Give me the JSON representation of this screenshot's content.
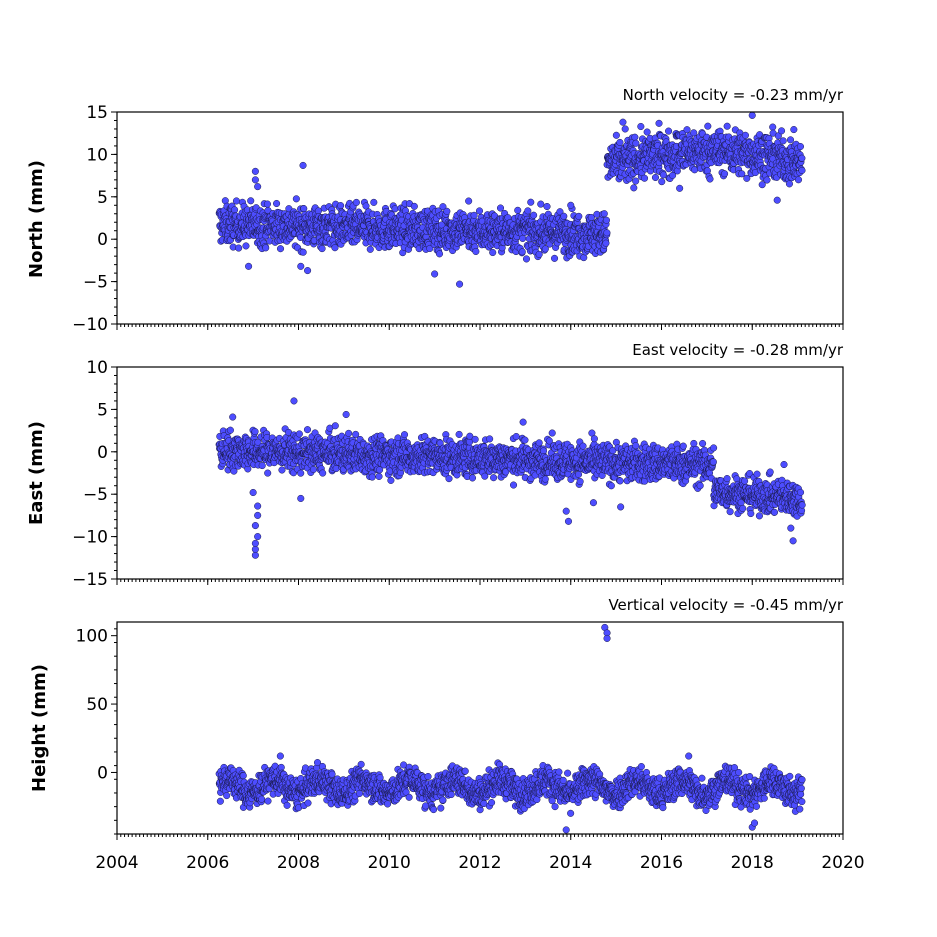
{
  "chart_data": [
    {
      "type": "scatter",
      "annotation": "North velocity = -0.23 mm/yr",
      "ylabel": "North (mm)",
      "xlim": [
        2004,
        2020
      ],
      "ylim": [
        -10,
        15
      ],
      "yticks": [
        -10,
        -5,
        0,
        5,
        10,
        15
      ],
      "marker_color": "#4d4dff",
      "segments": [
        {
          "start": 2006.25,
          "end": 2014.8,
          "y_start": 1.8,
          "y_end": 0.6,
          "spread": 1.2
        },
        {
          "start": 2014.8,
          "end": 2019.1,
          "y_start": 8.8,
          "y_end": 9.0,
          "spread": 1.3,
          "hump": 1.5
        }
      ],
      "outliers": [
        [
          2007.05,
          8.0
        ],
        [
          2007.05,
          7.0
        ],
        [
          2007.1,
          6.2
        ],
        [
          2008.1,
          8.7
        ],
        [
          2008.05,
          -3.2
        ],
        [
          2008.2,
          -3.7
        ],
        [
          2011.55,
          -5.3
        ],
        [
          2011.0,
          -4.1
        ],
        [
          2006.9,
          -3.2
        ],
        [
          2014.0,
          4.0
        ],
        [
          2015.15,
          13.8
        ],
        [
          2015.2,
          13.0
        ],
        [
          2016.4,
          6.0
        ],
        [
          2018.0,
          14.6
        ],
        [
          2018.55,
          4.6
        ],
        [
          2011.75,
          4.5
        ]
      ]
    },
    {
      "type": "scatter",
      "annotation": "East velocity = -0.28 mm/yr",
      "ylabel": "East (mm)",
      "xlim": [
        2004,
        2020
      ],
      "ylim": [
        -15,
        10
      ],
      "yticks": [
        -15,
        -10,
        -5,
        0,
        5,
        10
      ],
      "marker_color": "#4d4dff",
      "segments": [
        {
          "start": 2006.25,
          "end": 2017.15,
          "y_start": 0.2,
          "y_end": -1.6,
          "spread": 1.1
        },
        {
          "start": 2017.15,
          "end": 2019.1,
          "y_start": -4.6,
          "y_end": -5.6,
          "spread": 1.0
        }
      ],
      "outliers": [
        [
          2007.05,
          -12.2
        ],
        [
          2007.05,
          -11.5
        ],
        [
          2007.05,
          -10.8
        ],
        [
          2007.1,
          -10.0
        ],
        [
          2007.05,
          -8.7
        ],
        [
          2007.1,
          -7.5
        ],
        [
          2007.1,
          -6.4
        ],
        [
          2007.0,
          -4.8
        ],
        [
          2007.9,
          6.0
        ],
        [
          2006.55,
          4.1
        ],
        [
          2009.05,
          4.4
        ],
        [
          2008.05,
          -5.5
        ],
        [
          2013.9,
          -7.0
        ],
        [
          2013.95,
          -8.2
        ],
        [
          2014.5,
          -6.0
        ],
        [
          2015.1,
          -6.5
        ],
        [
          2018.9,
          -10.5
        ],
        [
          2018.85,
          -9.0
        ],
        [
          2018.7,
          -1.5
        ],
        [
          2012.95,
          3.5
        ]
      ]
    },
    {
      "type": "scatter",
      "annotation": "Vertical velocity = -0.45 mm/yr",
      "ylabel": "Height (mm)",
      "xlim": [
        2004,
        2020
      ],
      "ylim": [
        -45,
        110
      ],
      "yticks": [
        0,
        50,
        100
      ],
      "marker_color": "#4d4dff",
      "segments": [
        {
          "start": 2006.25,
          "end": 2019.1,
          "y_start": -10,
          "y_end": -11,
          "spread": 5.5,
          "seasonal": 5
        }
      ],
      "outliers": [
        [
          2014.75,
          106
        ],
        [
          2014.8,
          102
        ],
        [
          2014.8,
          98
        ],
        [
          2013.9,
          -42
        ],
        [
          2018.0,
          -40
        ],
        [
          2018.05,
          -37
        ],
        [
          2007.6,
          12
        ],
        [
          2016.6,
          12
        ]
      ]
    }
  ],
  "xticks": [
    "2004",
    "2006",
    "2008",
    "2010",
    "2012",
    "2014",
    "2016",
    "2018",
    "2020"
  ]
}
